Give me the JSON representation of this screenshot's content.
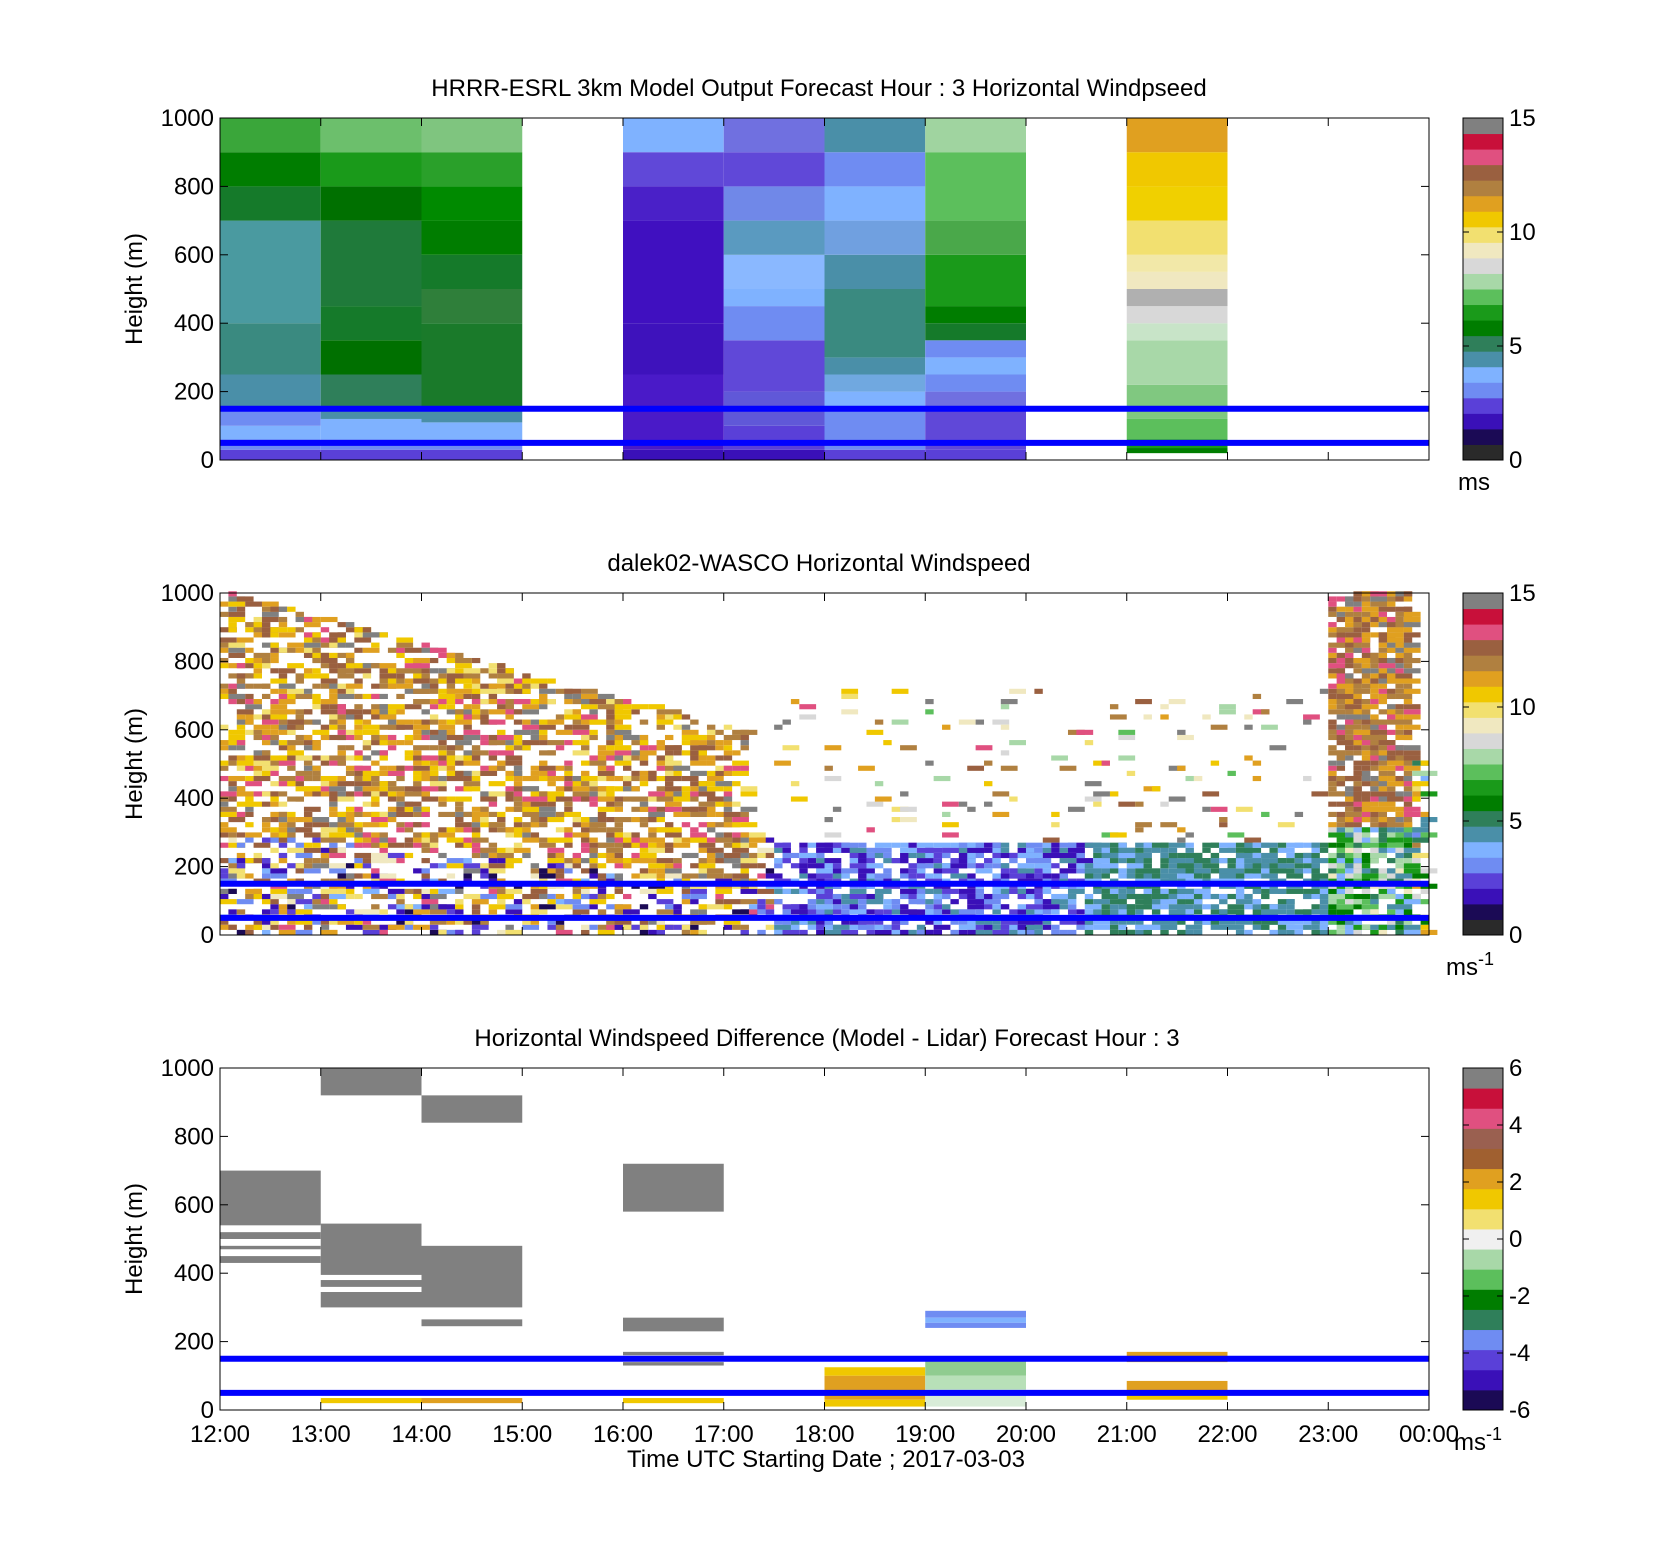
{
  "colors": {
    "windspeed_colormap": [
      "#2a2a2a",
      "#1b0a55",
      "#3a10b8",
      "#5a40d8",
      "#6f8cf2",
      "#7fb2ff",
      "#4a8fa8",
      "#2f7f5a",
      "#007d00",
      "#1a9a1a",
      "#5cbf5c",
      "#a8d8a8",
      "#d8d8d8",
      "#f0e8c0",
      "#f2e070",
      "#f0c800",
      "#e0a020",
      "#b08040",
      "#9a6040",
      "#e05080",
      "#c8103a",
      "#808080"
    ],
    "difference_colormap": [
      "#1b0a55",
      "#3a10b8",
      "#5a40d8",
      "#6f8cf2",
      "#2f7f5a",
      "#007d00",
      "#5cbf5c",
      "#a8d8a8",
      "#f0f0f0",
      "#f2e070",
      "#f0c800",
      "#e0a020",
      "#a06030",
      "#9a6050",
      "#e05080",
      "#c8103a",
      "#808080"
    ],
    "reference_lines": "#0000ff",
    "nodata": "#808080"
  },
  "chart_data": [
    {
      "type": "heatmap",
      "title": "HRRR-ESRL 3km Model Output   Forecast Hour : 3 Horizontal Windpseed",
      "xlabel": "",
      "ylabel": "Height (m)",
      "ylim": [
        0,
        1000
      ],
      "yticks": [
        "0",
        "200",
        "400",
        "600",
        "800",
        "1000"
      ],
      "xlim_hours": [
        12,
        24
      ],
      "colorbar": {
        "range": [
          0,
          15
        ],
        "ticks": [
          "0",
          "5",
          "10",
          "15"
        ],
        "label": "ms"
      },
      "reference_lines_m": [
        50,
        150
      ],
      "columns": [
        {
          "t0": 12,
          "t1": 13,
          "cells": [
            [
              0,
              30,
              "#5a40d8"
            ],
            [
              30,
              60,
              "#6f8cf2"
            ],
            [
              60,
              100,
              "#7fb2ff"
            ],
            [
              100,
              150,
              "#6f8cf2"
            ],
            [
              150,
              250,
              "#4a8fa8"
            ],
            [
              250,
              400,
              "#3a8a80"
            ],
            [
              400,
              700,
              "#4a9aa0"
            ],
            [
              700,
              800,
              "#157a2a"
            ],
            [
              800,
              900,
              "#007d00"
            ],
            [
              900,
              1000,
              "#3aa63a"
            ]
          ]
        },
        {
          "t0": 13,
          "t1": 14,
          "cells": [
            [
              0,
              30,
              "#5a40d8"
            ],
            [
              30,
              60,
              "#6f8cf2"
            ],
            [
              60,
              120,
              "#7fb2ff"
            ],
            [
              120,
              150,
              "#4a8fa8"
            ],
            [
              150,
              250,
              "#2f7f5a"
            ],
            [
              250,
              350,
              "#007000"
            ],
            [
              350,
              450,
              "#157a2a"
            ],
            [
              450,
              700,
              "#1f7a3a"
            ],
            [
              700,
              800,
              "#007000"
            ],
            [
              800,
              900,
              "#1a9a1a"
            ],
            [
              900,
              1000,
              "#6cbf6c"
            ]
          ]
        },
        {
          "t0": 14,
          "t1": 15,
          "cells": [
            [
              0,
              30,
              "#5a40d8"
            ],
            [
              30,
              60,
              "#6f8cf2"
            ],
            [
              60,
              110,
              "#7fb2ff"
            ],
            [
              110,
              150,
              "#4a8fa8"
            ],
            [
              150,
              400,
              "#1a7a2a"
            ],
            [
              400,
              500,
              "#2f7f3a"
            ],
            [
              500,
              600,
              "#157a2a"
            ],
            [
              600,
              700,
              "#007d00"
            ],
            [
              700,
              800,
              "#008a00"
            ],
            [
              800,
              900,
              "#2aa02a"
            ],
            [
              900,
              1000,
              "#7fc57f"
            ]
          ]
        },
        {
          "t0": 16,
          "t1": 17,
          "cells": [
            [
              0,
              30,
              "#3a10b8"
            ],
            [
              30,
              250,
              "#4a1ac8"
            ],
            [
              250,
              400,
              "#3e12bc"
            ],
            [
              400,
              700,
              "#4010c0"
            ],
            [
              700,
              800,
              "#4a20c8"
            ],
            [
              800,
              900,
              "#6048d8"
            ],
            [
              900,
              1000,
              "#7fb2ff"
            ]
          ]
        },
        {
          "t0": 17,
          "t1": 18,
          "cells": [
            [
              0,
              30,
              "#3a10b8"
            ],
            [
              30,
              100,
              "#5a40d8"
            ],
            [
              100,
              200,
              "#6058d8"
            ],
            [
              200,
              350,
              "#6048d8"
            ],
            [
              350,
              450,
              "#6f8cf2"
            ],
            [
              450,
              500,
              "#7fb2ff"
            ],
            [
              500,
              600,
              "#8ab8ff"
            ],
            [
              600,
              700,
              "#5a9ac0"
            ],
            [
              700,
              800,
              "#7088e8"
            ],
            [
              800,
              900,
              "#6048d8"
            ],
            [
              900,
              1000,
              "#7070e0"
            ]
          ]
        },
        {
          "t0": 18,
          "t1": 19,
          "cells": [
            [
              0,
              30,
              "#5a40d8"
            ],
            [
              30,
              150,
              "#6f8cf2"
            ],
            [
              150,
              200,
              "#7fb2ff"
            ],
            [
              200,
              250,
              "#70a8e0"
            ],
            [
              250,
              300,
              "#4a8fa8"
            ],
            [
              300,
              500,
              "#3a8a80"
            ],
            [
              500,
              600,
              "#4a8fa8"
            ],
            [
              600,
              700,
              "#70a0e0"
            ],
            [
              700,
              800,
              "#7fb2ff"
            ],
            [
              800,
              900,
              "#6f8cf2"
            ],
            [
              900,
              1000,
              "#4a8fa8"
            ]
          ]
        },
        {
          "t0": 19,
          "t1": 20,
          "cells": [
            [
              0,
              30,
              "#5a40d8"
            ],
            [
              30,
              150,
              "#6048d8"
            ],
            [
              150,
              200,
              "#7070e0"
            ],
            [
              200,
              250,
              "#6f8cf2"
            ],
            [
              250,
              300,
              "#7fb2ff"
            ],
            [
              300,
              350,
              "#6f8cf2"
            ],
            [
              350,
              400,
              "#157a2a"
            ],
            [
              400,
              450,
              "#007d00"
            ],
            [
              450,
              600,
              "#1a9a1a"
            ],
            [
              600,
              700,
              "#4aa84a"
            ],
            [
              700,
              900,
              "#5cbf5c"
            ],
            [
              900,
              1000,
              "#a0d4a0"
            ]
          ]
        },
        {
          "t0": 21,
          "t1": 22,
          "cells": [
            [
              20,
              35,
              "#007d00"
            ],
            [
              35,
              60,
              "#1a9a1a"
            ],
            [
              60,
              120,
              "#5cbf5c"
            ],
            [
              120,
              220,
              "#80c880"
            ],
            [
              220,
              350,
              "#a8d8a8"
            ],
            [
              350,
              400,
              "#c8e4c8"
            ],
            [
              400,
              450,
              "#d8d8d8"
            ],
            [
              450,
              500,
              "#b0b0b0"
            ],
            [
              500,
              550,
              "#f0e8c0"
            ],
            [
              550,
              600,
              "#f2e8a8"
            ],
            [
              600,
              700,
              "#f2e070"
            ],
            [
              700,
              800,
              "#f0d000"
            ],
            [
              800,
              900,
              "#f0c800"
            ],
            [
              900,
              1000,
              "#e0a020"
            ]
          ]
        }
      ]
    },
    {
      "type": "heatmap",
      "title": "dalek02-WASCO  Horizontal Windspeed",
      "xlabel": "",
      "ylabel": "Height (m)",
      "ylim": [
        0,
        1000
      ],
      "yticks": [
        "0",
        "200",
        "400",
        "600",
        "800",
        "1000"
      ],
      "xlim_hours": [
        12,
        24
      ],
      "colorbar": {
        "range": [
          0,
          15
        ],
        "ticks": [
          "0",
          "5",
          "10",
          "15"
        ],
        "label": "ms",
        "label_exponent": "-1"
      },
      "reference_lines_m": [
        50,
        150
      ],
      "pattern": "range-gated lidar scans: strong winds 10–15 m/s aloft (300–1000 m) from 12:00–17:00 and 23:00–23:45, weak 0–5 m/s below 300 m from 17:00–24:00"
    },
    {
      "type": "heatmap",
      "title": "Horizontal Windspeed Difference (Model - Lidar) Forecast Hour : 3",
      "xlabel": "Time UTC  Starting Date ; 2017-03-03",
      "ylabel": "Height (m)",
      "ylim": [
        0,
        1000
      ],
      "yticks": [
        "0",
        "200",
        "400",
        "600",
        "800",
        "1000"
      ],
      "xticks": [
        "12:00",
        "13:00",
        "14:00",
        "15:00",
        "16:00",
        "17:00",
        "18:00",
        "19:00",
        "20:00",
        "21:00",
        "22:00",
        "23:00",
        "00:00"
      ],
      "xlim_hours": [
        12,
        24
      ],
      "colorbar": {
        "range": [
          -6,
          6
        ],
        "ticks": [
          "-6",
          "-4",
          "-2",
          "0",
          "2",
          "4",
          "6"
        ],
        "label": "ms",
        "label_exponent": "-1"
      },
      "reference_lines_m": [
        50,
        150
      ],
      "blocks": [
        {
          "t0": 12,
          "t1": 13,
          "h0": 540,
          "h1": 700,
          "color": "#808080"
        },
        {
          "t0": 12,
          "t1": 13,
          "h0": 500,
          "h1": 520,
          "color": "#808080"
        },
        {
          "t0": 12,
          "t1": 13,
          "h0": 470,
          "h1": 480,
          "color": "#808080"
        },
        {
          "t0": 12,
          "t1": 13,
          "h0": 430,
          "h1": 450,
          "color": "#808080"
        },
        {
          "t0": 13,
          "t1": 14,
          "h0": 920,
          "h1": 1000,
          "color": "#808080"
        },
        {
          "t0": 13,
          "t1": 14,
          "h0": 395,
          "h1": 545,
          "color": "#808080"
        },
        {
          "t0": 13,
          "t1": 14,
          "h0": 360,
          "h1": 380,
          "color": "#808080"
        },
        {
          "t0": 13,
          "t1": 14,
          "h0": 300,
          "h1": 345,
          "color": "#808080"
        },
        {
          "t0": 13,
          "t1": 14,
          "h0": 20,
          "h1": 35,
          "color": "#f0c800"
        },
        {
          "t0": 14,
          "t1": 15,
          "h0": 840,
          "h1": 920,
          "color": "#808080"
        },
        {
          "t0": 14,
          "t1": 15,
          "h0": 300,
          "h1": 480,
          "color": "#808080"
        },
        {
          "t0": 14,
          "t1": 15,
          "h0": 245,
          "h1": 265,
          "color": "#808080"
        },
        {
          "t0": 14,
          "t1": 15,
          "h0": 20,
          "h1": 35,
          "color": "#e0a020"
        },
        {
          "t0": 16,
          "t1": 17,
          "h0": 580,
          "h1": 720,
          "color": "#808080"
        },
        {
          "t0": 16,
          "t1": 17,
          "h0": 230,
          "h1": 270,
          "color": "#808080"
        },
        {
          "t0": 16,
          "t1": 17,
          "h0": 160,
          "h1": 170,
          "color": "#808080"
        },
        {
          "t0": 16,
          "t1": 17,
          "h0": 130,
          "h1": 140,
          "color": "#808080"
        },
        {
          "t0": 16,
          "t1": 17,
          "h0": 20,
          "h1": 35,
          "color": "#f0c800"
        },
        {
          "t0": 18,
          "t1": 19,
          "h0": 100,
          "h1": 125,
          "color": "#f0c800"
        },
        {
          "t0": 18,
          "t1": 19,
          "h0": 30,
          "h1": 100,
          "color": "#e0a020"
        },
        {
          "t0": 18,
          "t1": 19,
          "h0": 10,
          "h1": 30,
          "color": "#f0c800"
        },
        {
          "t0": 19,
          "t1": 20,
          "h0": 270,
          "h1": 290,
          "color": "#6f8cf2"
        },
        {
          "t0": 19,
          "t1": 20,
          "h0": 255,
          "h1": 270,
          "color": "#7fb2ff"
        },
        {
          "t0": 19,
          "t1": 20,
          "h0": 240,
          "h1": 255,
          "color": "#6f8cf2"
        },
        {
          "t0": 19,
          "t1": 20,
          "h0": 100,
          "h1": 145,
          "color": "#90cc90"
        },
        {
          "t0": 19,
          "t1": 20,
          "h0": 60,
          "h1": 100,
          "color": "#b8e0b8"
        },
        {
          "t0": 19,
          "t1": 20,
          "h0": 10,
          "h1": 60,
          "color": "#d8ecd8"
        },
        {
          "t0": 21,
          "t1": 22,
          "h0": 155,
          "h1": 170,
          "color": "#e0a020"
        },
        {
          "t0": 21,
          "t1": 22,
          "h0": 140,
          "h1": 155,
          "color": "#f0c800"
        },
        {
          "t0": 21,
          "t1": 22,
          "h0": 45,
          "h1": 85,
          "color": "#e0a020"
        },
        {
          "t0": 21,
          "t1": 22,
          "h0": 30,
          "h1": 45,
          "color": "#f0c800"
        }
      ]
    }
  ]
}
